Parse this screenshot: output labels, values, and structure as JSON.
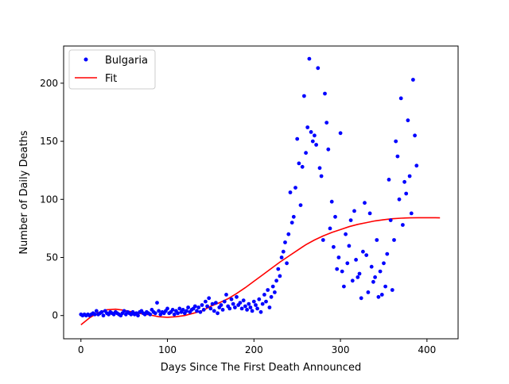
{
  "chart_data": {
    "type": "scatter",
    "xlabel": "Days Since The First Death Announced",
    "ylabel": "Number of Daily Deaths",
    "xlim": [
      -20,
      436
    ],
    "ylim": [
      -20,
      232
    ],
    "xticks": [
      0,
      100,
      200,
      300,
      400
    ],
    "yticks": [
      0,
      50,
      100,
      150,
      200
    ],
    "legend": {
      "placement": "top-left",
      "entries": [
        {
          "label": "Bulgaria",
          "color": "#0000ff",
          "marker": "dot"
        },
        {
          "label": "Fit",
          "color": "#ff0000",
          "marker": "line"
        }
      ]
    },
    "series": [
      {
        "name": "Bulgaria",
        "kind": "scatter",
        "color": "#0000ff",
        "points": [
          [
            0,
            1
          ],
          [
            2,
            0
          ],
          [
            4,
            1
          ],
          [
            6,
            0
          ],
          [
            8,
            1
          ],
          [
            10,
            0
          ],
          [
            12,
            1
          ],
          [
            14,
            2
          ],
          [
            16,
            1
          ],
          [
            18,
            4
          ],
          [
            20,
            1
          ],
          [
            22,
            2
          ],
          [
            24,
            3
          ],
          [
            26,
            0
          ],
          [
            28,
            4
          ],
          [
            30,
            2
          ],
          [
            32,
            1
          ],
          [
            34,
            3
          ],
          [
            36,
            2
          ],
          [
            38,
            1
          ],
          [
            40,
            3
          ],
          [
            42,
            2
          ],
          [
            44,
            1
          ],
          [
            46,
            0
          ],
          [
            48,
            2
          ],
          [
            50,
            4
          ],
          [
            52,
            1
          ],
          [
            54,
            3
          ],
          [
            56,
            2
          ],
          [
            58,
            1
          ],
          [
            60,
            3
          ],
          [
            62,
            1
          ],
          [
            64,
            2
          ],
          [
            66,
            0
          ],
          [
            68,
            3
          ],
          [
            70,
            4
          ],
          [
            72,
            2
          ],
          [
            74,
            1
          ],
          [
            76,
            3
          ],
          [
            78,
            2
          ],
          [
            80,
            1
          ],
          [
            82,
            5
          ],
          [
            84,
            3
          ],
          [
            86,
            2
          ],
          [
            88,
            11
          ],
          [
            90,
            4
          ],
          [
            92,
            1
          ],
          [
            94,
            3
          ],
          [
            96,
            2
          ],
          [
            98,
            4
          ],
          [
            100,
            6
          ],
          [
            102,
            2
          ],
          [
            104,
            3
          ],
          [
            106,
            5
          ],
          [
            108,
            1
          ],
          [
            110,
            4
          ],
          [
            112,
            2
          ],
          [
            114,
            6
          ],
          [
            116,
            3
          ],
          [
            118,
            5
          ],
          [
            120,
            2
          ],
          [
            122,
            4
          ],
          [
            124,
            7
          ],
          [
            126,
            3
          ],
          [
            128,
            5
          ],
          [
            130,
            6
          ],
          [
            132,
            8
          ],
          [
            134,
            4
          ],
          [
            136,
            7
          ],
          [
            138,
            3
          ],
          [
            140,
            9
          ],
          [
            142,
            5
          ],
          [
            144,
            12
          ],
          [
            146,
            8
          ],
          [
            148,
            15
          ],
          [
            150,
            6
          ],
          [
            152,
            10
          ],
          [
            154,
            4
          ],
          [
            156,
            11
          ],
          [
            158,
            2
          ],
          [
            160,
            7
          ],
          [
            162,
            9
          ],
          [
            164,
            5
          ],
          [
            166,
            12
          ],
          [
            168,
            18
          ],
          [
            170,
            8
          ],
          [
            172,
            6
          ],
          [
            174,
            14
          ],
          [
            176,
            10
          ],
          [
            178,
            7
          ],
          [
            180,
            16
          ],
          [
            182,
            9
          ],
          [
            184,
            11
          ],
          [
            186,
            6
          ],
          [
            188,
            13
          ],
          [
            190,
            8
          ],
          [
            192,
            5
          ],
          [
            194,
            10
          ],
          [
            196,
            7
          ],
          [
            198,
            4
          ],
          [
            200,
            12
          ],
          [
            202,
            9
          ],
          [
            204,
            6
          ],
          [
            206,
            14
          ],
          [
            208,
            3
          ],
          [
            210,
            10
          ],
          [
            212,
            18
          ],
          [
            214,
            12
          ],
          [
            216,
            22
          ],
          [
            218,
            7
          ],
          [
            220,
            16
          ],
          [
            222,
            25
          ],
          [
            224,
            20
          ],
          [
            226,
            30
          ],
          [
            228,
            40
          ],
          [
            230,
            34
          ],
          [
            232,
            50
          ],
          [
            234,
            55
          ],
          [
            236,
            63
          ],
          [
            238,
            45
          ],
          [
            240,
            70
          ],
          [
            242,
            106
          ],
          [
            244,
            80
          ],
          [
            246,
            85
          ],
          [
            248,
            110
          ],
          [
            250,
            152
          ],
          [
            252,
            131
          ],
          [
            254,
            95
          ],
          [
            256,
            128
          ],
          [
            258,
            189
          ],
          [
            260,
            140
          ],
          [
            262,
            162
          ],
          [
            264,
            221
          ],
          [
            266,
            158
          ],
          [
            268,
            150
          ],
          [
            270,
            155
          ],
          [
            272,
            147
          ],
          [
            274,
            213
          ],
          [
            276,
            127
          ],
          [
            278,
            120
          ],
          [
            280,
            65
          ],
          [
            282,
            191
          ],
          [
            284,
            166
          ],
          [
            286,
            143
          ],
          [
            288,
            75
          ],
          [
            290,
            98
          ],
          [
            292,
            59
          ],
          [
            294,
            85
          ],
          [
            296,
            40
          ],
          [
            298,
            50
          ],
          [
            300,
            157
          ],
          [
            302,
            38
          ],
          [
            304,
            25
          ],
          [
            306,
            70
          ],
          [
            308,
            45
          ],
          [
            310,
            60
          ],
          [
            312,
            82
          ],
          [
            314,
            30
          ],
          [
            316,
            90
          ],
          [
            318,
            48
          ],
          [
            320,
            33
          ],
          [
            322,
            36
          ],
          [
            324,
            15
          ],
          [
            326,
            55
          ],
          [
            328,
            97
          ],
          [
            330,
            52
          ],
          [
            332,
            20
          ],
          [
            334,
            88
          ],
          [
            336,
            42
          ],
          [
            338,
            29
          ],
          [
            340,
            33
          ],
          [
            342,
            65
          ],
          [
            344,
            16
          ],
          [
            346,
            38
          ],
          [
            348,
            18
          ],
          [
            350,
            45
          ],
          [
            352,
            25
          ],
          [
            354,
            53
          ],
          [
            356,
            117
          ],
          [
            358,
            82
          ],
          [
            360,
            22
          ],
          [
            362,
            65
          ],
          [
            364,
            150
          ],
          [
            366,
            137
          ],
          [
            368,
            100
          ],
          [
            370,
            187
          ],
          [
            372,
            78
          ],
          [
            374,
            115
          ],
          [
            376,
            105
          ],
          [
            378,
            168
          ],
          [
            380,
            120
          ],
          [
            382,
            88
          ],
          [
            384,
            203
          ],
          [
            386,
            155
          ],
          [
            388,
            129
          ]
        ]
      },
      {
        "name": "Fit",
        "kind": "line",
        "color": "#ff0000",
        "points": [
          [
            0,
            -8
          ],
          [
            10,
            -2
          ],
          [
            20,
            2.5
          ],
          [
            30,
            5
          ],
          [
            40,
            5.5
          ],
          [
            50,
            4.5
          ],
          [
            60,
            3
          ],
          [
            70,
            1.5
          ],
          [
            80,
            0.5
          ],
          [
            90,
            -1
          ],
          [
            100,
            -1.5
          ],
          [
            110,
            -1
          ],
          [
            120,
            0
          ],
          [
            130,
            2
          ],
          [
            140,
            4
          ],
          [
            150,
            8
          ],
          [
            160,
            11
          ],
          [
            170,
            14.5
          ],
          [
            180,
            19
          ],
          [
            190,
            24
          ],
          [
            200,
            29.5
          ],
          [
            210,
            35
          ],
          [
            220,
            40.5
          ],
          [
            230,
            46
          ],
          [
            240,
            51
          ],
          [
            250,
            56
          ],
          [
            260,
            61
          ],
          [
            270,
            65
          ],
          [
            280,
            68.5
          ],
          [
            290,
            71.5
          ],
          [
            300,
            74
          ],
          [
            310,
            76.5
          ],
          [
            320,
            78.5
          ],
          [
            330,
            80
          ],
          [
            340,
            81.5
          ],
          [
            350,
            82.5
          ],
          [
            360,
            83.3
          ],
          [
            370,
            83.8
          ],
          [
            380,
            84.1
          ],
          [
            390,
            84.2
          ],
          [
            400,
            84.2
          ],
          [
            410,
            84.2
          ],
          [
            415,
            84.1
          ]
        ]
      }
    ]
  }
}
